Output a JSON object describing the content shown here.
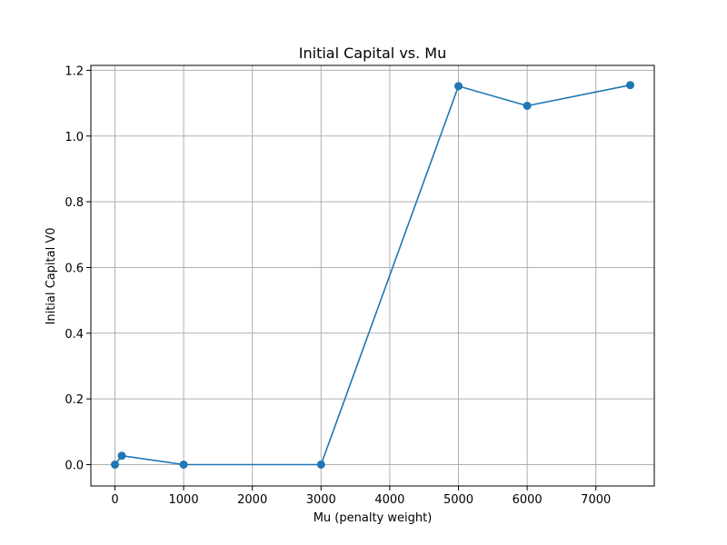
{
  "chart_data": {
    "type": "line",
    "title": "Initial Capital vs. Mu",
    "xlabel": "Mu (penalty weight)",
    "ylabel": "Initial Capital V0",
    "xlim": [
      -350,
      7850
    ],
    "ylim": [
      -0.065,
      1.215
    ],
    "xticks": [
      0,
      1000,
      2000,
      3000,
      4000,
      5000,
      6000,
      7000
    ],
    "yticks": [
      0.0,
      0.2,
      0.4,
      0.6,
      0.8,
      1.0,
      1.2
    ],
    "ytick_labels": [
      "0.0",
      "0.2",
      "0.4",
      "0.6",
      "0.8",
      "1.0",
      "1.2"
    ],
    "grid": true,
    "series": [
      {
        "color": "#1f77b4",
        "marker": "circle",
        "x": [
          0,
          100,
          1000,
          3000,
          5000,
          6000,
          7500
        ],
        "y": [
          0.0,
          0.027,
          0.0,
          0.0,
          1.152,
          1.092,
          1.155
        ]
      }
    ]
  }
}
